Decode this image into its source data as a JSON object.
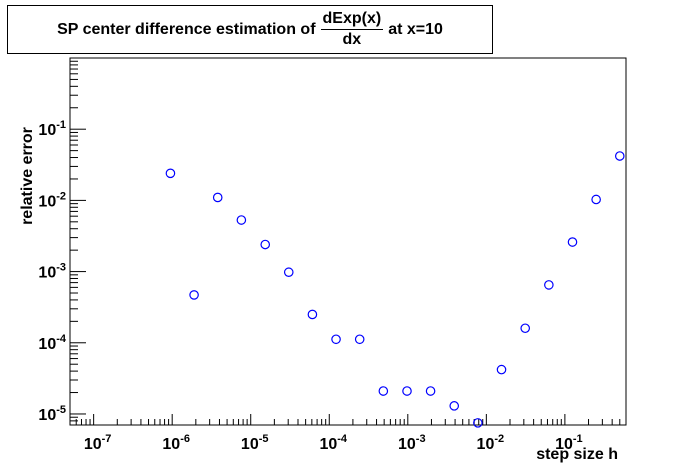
{
  "title": {
    "prefix": "SP center difference estimation of",
    "frac_num": "dExp(x)",
    "frac_den": "dx",
    "suffix": "at x=10"
  },
  "chart_data": {
    "type": "scatter",
    "xlabel": "step size h",
    "ylabel": "relative error",
    "x_scale": "log",
    "y_scale": "log",
    "xlim": [
      5e-08,
      0.6
    ],
    "ylim": [
      7e-06,
      1.0
    ],
    "x_ticks": [
      {
        "base": "10",
        "exp": "-7",
        "value": 1e-07
      },
      {
        "base": "10",
        "exp": "-6",
        "value": 1e-06
      },
      {
        "base": "10",
        "exp": "-5",
        "value": 1e-05
      },
      {
        "base": "10",
        "exp": "-4",
        "value": 0.0001
      },
      {
        "base": "10",
        "exp": "-3",
        "value": 0.001
      },
      {
        "base": "10",
        "exp": "-2",
        "value": 0.01
      },
      {
        "base": "10",
        "exp": "-1",
        "value": 0.1
      }
    ],
    "y_ticks": [
      {
        "base": "10",
        "exp": "-5",
        "value": 1e-05
      },
      {
        "base": "10",
        "exp": "-4",
        "value": 0.0001
      },
      {
        "base": "10",
        "exp": "-3",
        "value": 0.001
      },
      {
        "base": "10",
        "exp": "-2",
        "value": 0.01
      },
      {
        "base": "10",
        "exp": "-1",
        "value": 0.1
      }
    ],
    "grid": false,
    "marker": "open-circle",
    "marker_color": "#0000ff",
    "points": [
      {
        "x": 9.5e-07,
        "y": 0.024
      },
      {
        "x": 1.9e-06,
        "y": 0.00047
      },
      {
        "x": 3.8e-06,
        "y": 0.011
      },
      {
        "x": 7.6e-06,
        "y": 0.0053
      },
      {
        "x": 1.53e-05,
        "y": 0.0024
      },
      {
        "x": 3.05e-05,
        "y": 0.00098
      },
      {
        "x": 6.1e-05,
        "y": 0.00025
      },
      {
        "x": 0.000122,
        "y": 0.000112
      },
      {
        "x": 0.000244,
        "y": 0.000112
      },
      {
        "x": 0.000488,
        "y": 2.1e-05
      },
      {
        "x": 0.000977,
        "y": 2.1e-05
      },
      {
        "x": 0.00195,
        "y": 2.1e-05
      },
      {
        "x": 0.0039,
        "y": 1.3e-05
      },
      {
        "x": 0.0078,
        "y": 7.5e-06
      },
      {
        "x": 0.0156,
        "y": 4.2e-05
      },
      {
        "x": 0.03125,
        "y": 0.00016
      },
      {
        "x": 0.0625,
        "y": 0.00065
      },
      {
        "x": 0.125,
        "y": 0.0026
      },
      {
        "x": 0.25,
        "y": 0.0103
      },
      {
        "x": 0.5,
        "y": 0.042
      }
    ]
  }
}
